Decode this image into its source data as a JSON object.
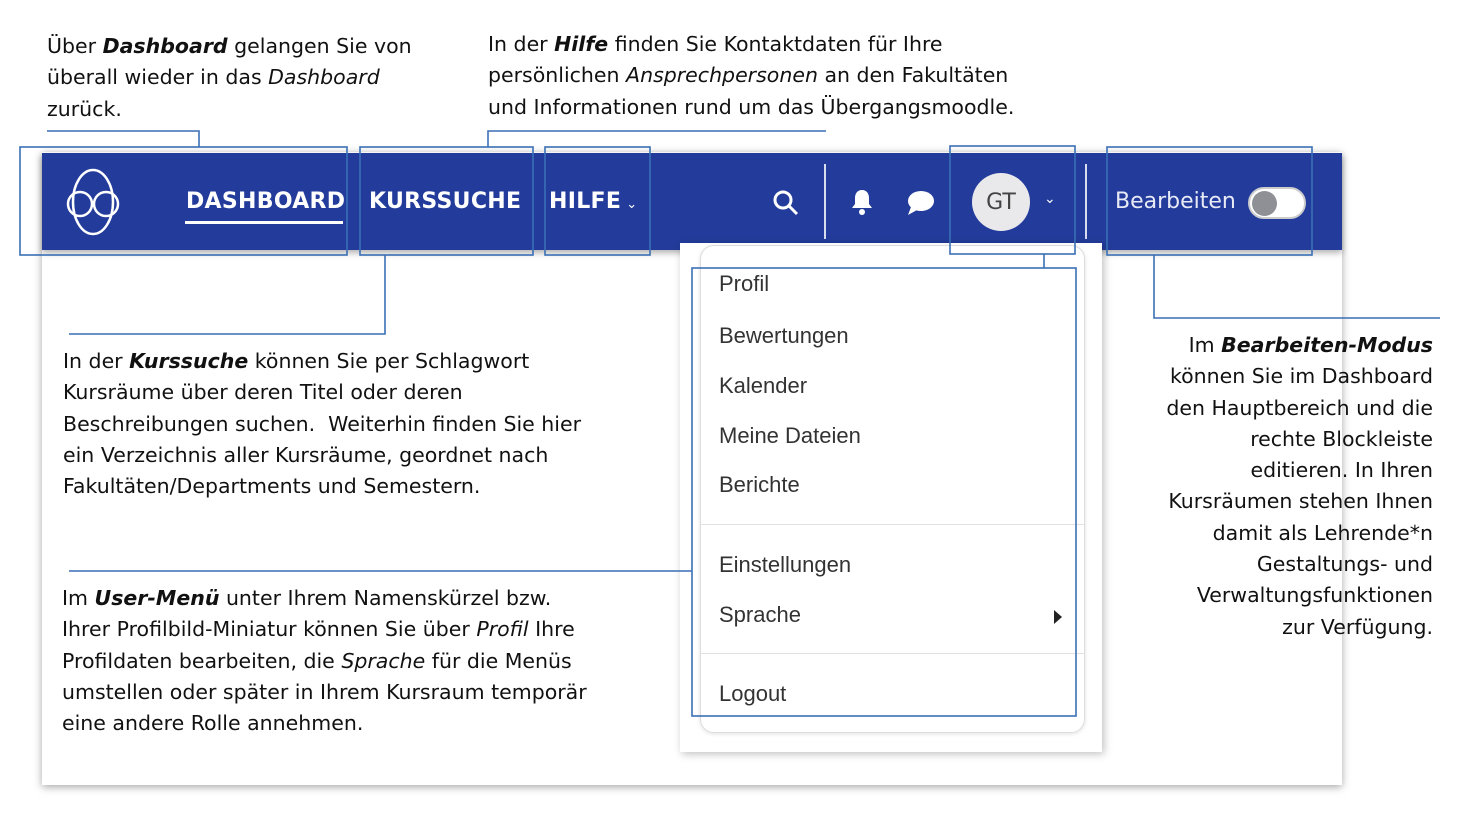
{
  "colors": {
    "navbar": "#233c9b",
    "annotation": "#3a6fb5",
    "avatar_bg": "#e9e9ec"
  },
  "navbar": {
    "logo_icon": "moodle-face-logo",
    "items": [
      {
        "label": "DASHBOARD",
        "active": true
      },
      {
        "label": "KURSSUCHE"
      },
      {
        "label": "HILFE"
      }
    ],
    "icons": [
      "search-icon",
      "bell-icon",
      "chat-bubble-icon"
    ],
    "avatar_initials": "GT",
    "edit_label": "Bearbeiten",
    "edit_mode_on": false
  },
  "user_menu": {
    "groups": [
      [
        "Profil",
        "Bewertungen",
        "Kalender",
        "Meine Dateien",
        "Berichte"
      ],
      [
        "Einstellungen",
        "Sprache"
      ],
      [
        "Logout"
      ]
    ]
  },
  "annotations": [
    {
      "id": "dashboard",
      "lines": [
        [
          [
            "Über ",
            ""
          ],
          [
            "Dashboard",
            "bi"
          ],
          [
            " gelangen Sie von",
            ""
          ]
        ],
        [
          [
            "überall wieder in das ",
            ""
          ],
          [
            "Dashboard",
            "i"
          ]
        ],
        [
          [
            "zurück.",
            ""
          ]
        ]
      ]
    },
    {
      "id": "hilfe",
      "lines": [
        [
          [
            "In der ",
            ""
          ],
          [
            "Hilfe",
            "bi"
          ],
          [
            " finden Sie Kontaktdaten für Ihre",
            ""
          ]
        ],
        [
          [
            "persönlichen ",
            ""
          ],
          [
            "Ansprechpersonen",
            "i"
          ],
          [
            " an den Fakultäten",
            ""
          ]
        ],
        [
          [
            "und Informationen rund um das Übergangsmoodle.",
            ""
          ]
        ]
      ]
    },
    {
      "id": "kurssuche",
      "lines": [
        [
          [
            "In der ",
            ""
          ],
          [
            "Kurssuche",
            "bi"
          ],
          [
            " können Sie per Schlagwort",
            ""
          ]
        ],
        [
          [
            "Kursräume über deren Titel oder deren",
            ""
          ]
        ],
        [
          [
            "Beschreibungen suchen.  Weiterhin finden Sie hier",
            ""
          ]
        ],
        [
          [
            "ein Verzeichnis aller Kursräume, geordnet nach",
            ""
          ]
        ],
        [
          [
            "Fakultäten/Departments und Semestern.",
            ""
          ]
        ]
      ]
    },
    {
      "id": "user-menu",
      "lines": [
        [
          [
            "Im ",
            ""
          ],
          [
            "User-Menü",
            "bi"
          ],
          [
            " unter Ihrem Namenskürzel bzw.",
            ""
          ]
        ],
        [
          [
            "Ihrer Profilbild-Miniatur können Sie über ",
            ""
          ],
          [
            "Profil",
            "i"
          ],
          [
            " Ihre",
            ""
          ]
        ],
        [
          [
            "Profildaten bearbeiten, die ",
            ""
          ],
          [
            "Sprache",
            "i"
          ],
          [
            " für die Menüs",
            ""
          ]
        ],
        [
          [
            "umstellen oder später in Ihrem Kursraum temporär",
            ""
          ]
        ],
        [
          [
            "eine andere Rolle annehmen.",
            ""
          ]
        ]
      ]
    },
    {
      "id": "bearbeiten",
      "lines": [
        [
          [
            "Im ",
            ""
          ],
          [
            "Bearbeiten-Modus",
            "bi"
          ]
        ],
        [
          [
            "können Sie im Dashboard",
            ""
          ]
        ],
        [
          [
            "den Hauptbereich und die",
            ""
          ]
        ],
        [
          [
            "rechte Blockleiste",
            ""
          ]
        ],
        [
          [
            "editieren. In Ihren",
            ""
          ]
        ],
        [
          [
            "Kursräumen stehen Ihnen",
            ""
          ]
        ],
        [
          [
            "damit als Lehrende*n",
            ""
          ]
        ],
        [
          [
            "Gestaltungs- und",
            ""
          ]
        ],
        [
          [
            "Verwaltungsfunktionen",
            ""
          ]
        ],
        [
          [
            "zur Verfügung.",
            ""
          ]
        ]
      ]
    }
  ]
}
